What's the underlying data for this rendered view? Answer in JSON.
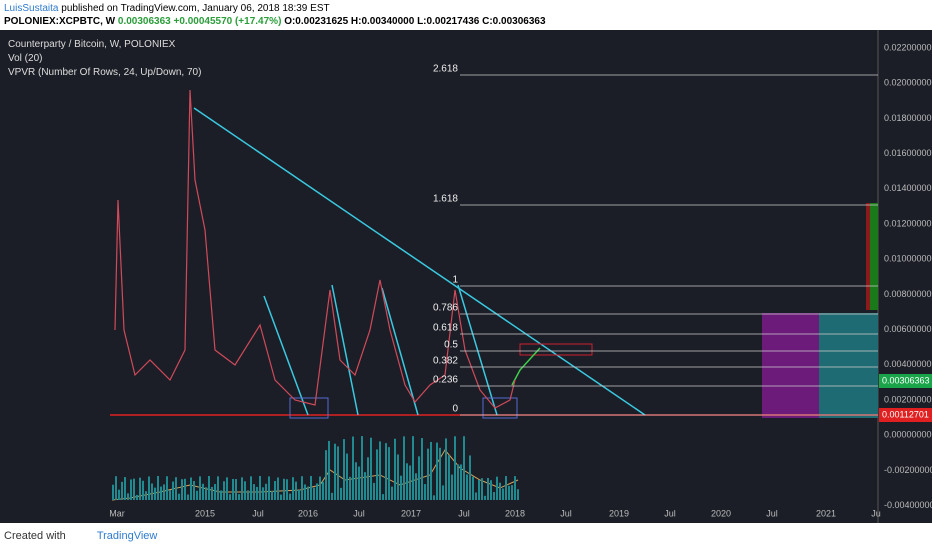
{
  "header": {
    "author": "LuisSustaita",
    "published": "published on TradingView.com, January 06, 2018 18:39 EST",
    "symbol": "POLONIEX:XCPBTC, W",
    "last": "0.00306363",
    "change": "+0.00045570 (+17.47%)",
    "ohlc": "O:0.00231625 H:0.00340000 L:0.00217436 C:0.00306363"
  },
  "legend": [
    "Counterparty / Bitcoin, W, POLONIEX",
    "Vol (20)",
    "VPVR (Number Of Rows, 24, Up/Down, 70)"
  ],
  "price_axis": [
    "0.02200000",
    "0.02000000",
    "0.01800000",
    "0.01600000",
    "0.01400000",
    "0.01200000",
    "0.01000000",
    "0.00800000",
    "0.00600000",
    "0.00400000",
    "0.00200000",
    "0.00000000",
    "-0.00200000",
    "-0.00400000"
  ],
  "time_axis": [
    "Mar",
    "2015",
    "Jul",
    "2016",
    "Jul",
    "2017",
    "Jul",
    "2018",
    "Jul",
    "2019",
    "Jul",
    "2020",
    "Jul",
    "2021",
    "Ju"
  ],
  "fib_levels": [
    "2.618",
    "1.618",
    "1",
    "0.786",
    "0.618",
    "0.5",
    "0.382",
    "0.236",
    "0"
  ],
  "price_tags": {
    "last": "0.00306363",
    "low": "0.00112701"
  },
  "footer": {
    "created": "Created with",
    "brand": "TradingView"
  }
}
